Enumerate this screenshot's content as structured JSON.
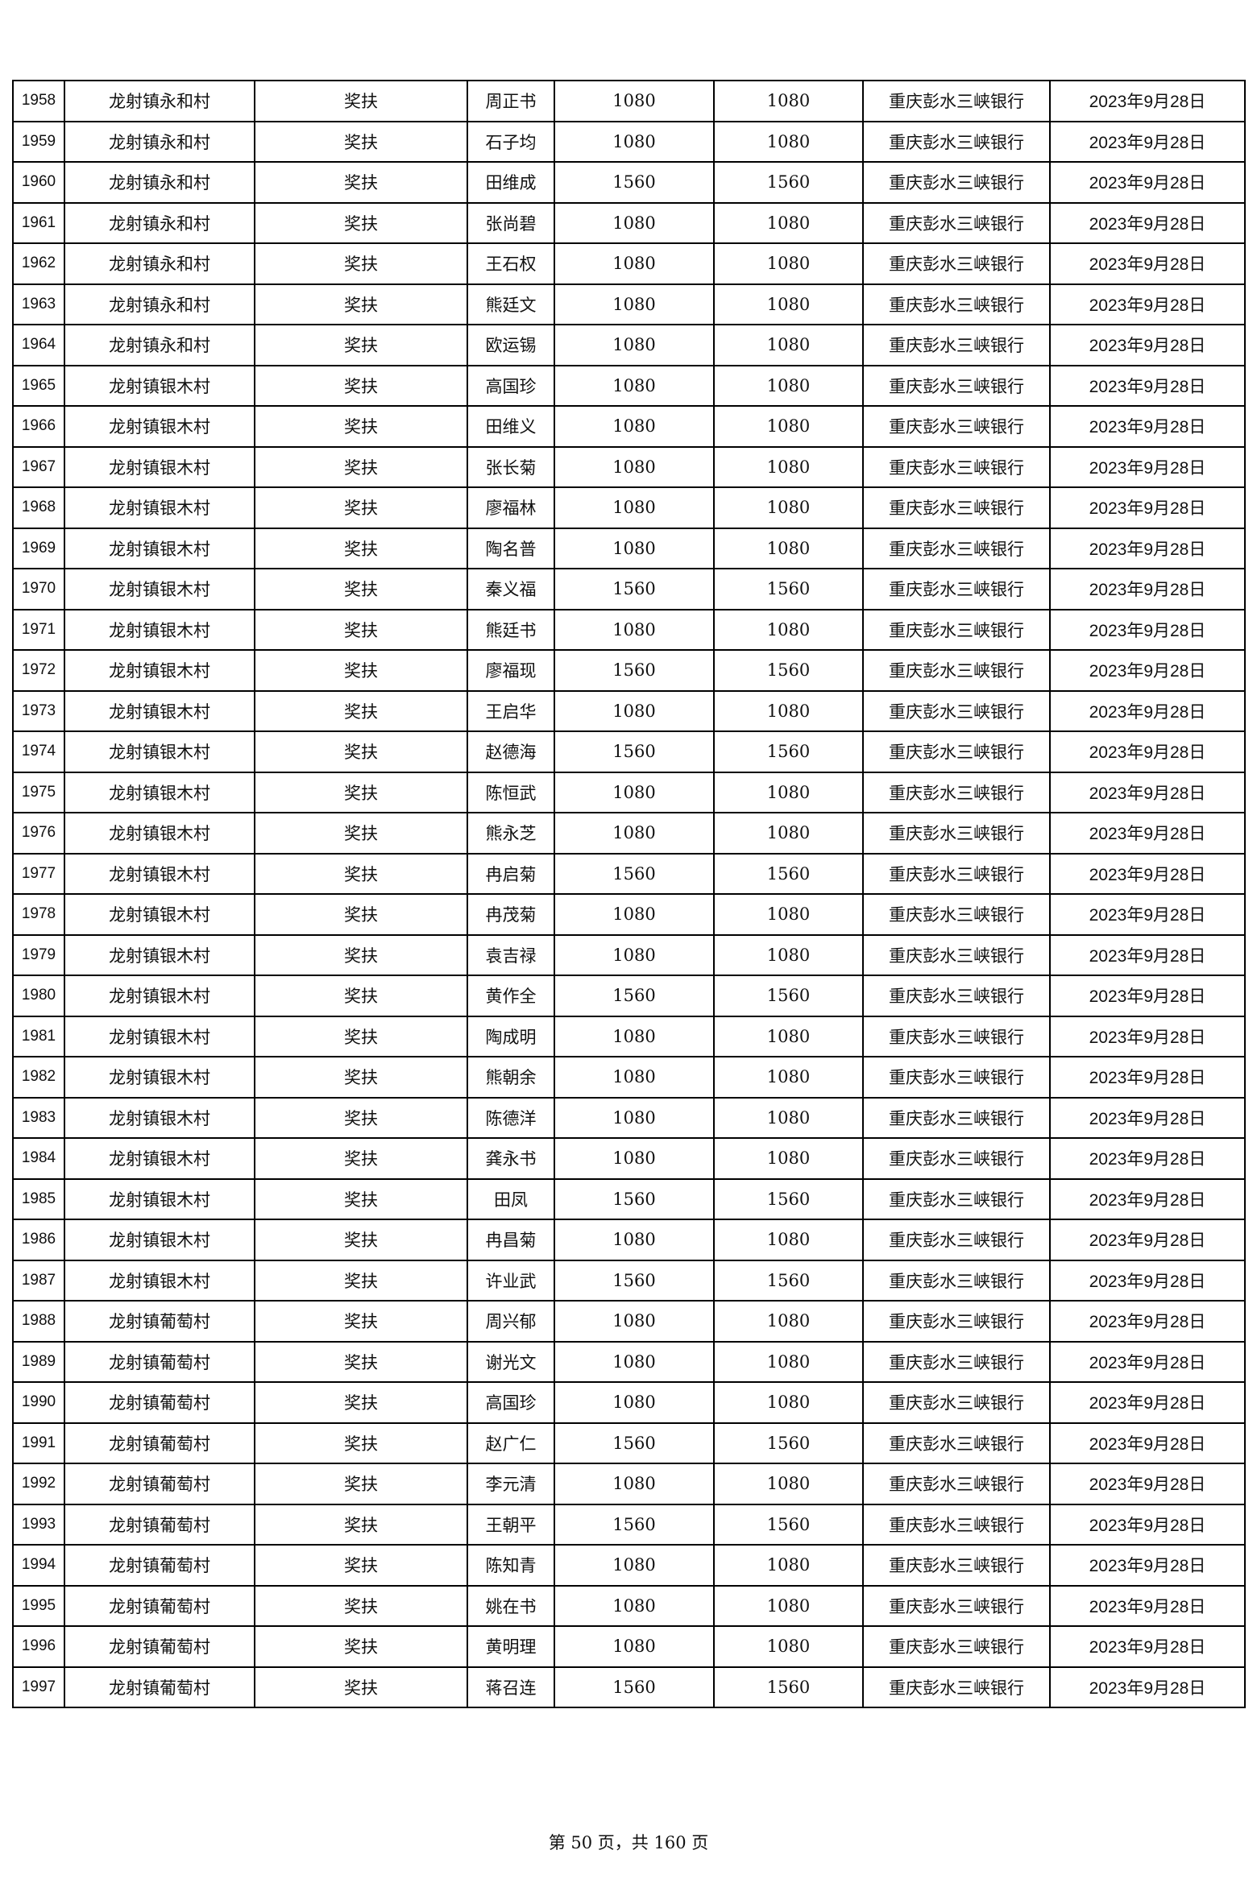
{
  "table": {
    "rows": [
      [
        "1958",
        "龙射镇永和村",
        "奖扶",
        "周正书",
        "1080",
        "1080",
        "重庆彭水三峡银行",
        "2023年9月28日"
      ],
      [
        "1959",
        "龙射镇永和村",
        "奖扶",
        "石子均",
        "1080",
        "1080",
        "重庆彭水三峡银行",
        "2023年9月28日"
      ],
      [
        "1960",
        "龙射镇永和村",
        "奖扶",
        "田维成",
        "1560",
        "1560",
        "重庆彭水三峡银行",
        "2023年9月28日"
      ],
      [
        "1961",
        "龙射镇永和村",
        "奖扶",
        "张尚碧",
        "1080",
        "1080",
        "重庆彭水三峡银行",
        "2023年9月28日"
      ],
      [
        "1962",
        "龙射镇永和村",
        "奖扶",
        "王石权",
        "1080",
        "1080",
        "重庆彭水三峡银行",
        "2023年9月28日"
      ],
      [
        "1963",
        "龙射镇永和村",
        "奖扶",
        "熊廷文",
        "1080",
        "1080",
        "重庆彭水三峡银行",
        "2023年9月28日"
      ],
      [
        "1964",
        "龙射镇永和村",
        "奖扶",
        "欧运锡",
        "1080",
        "1080",
        "重庆彭水三峡银行",
        "2023年9月28日"
      ],
      [
        "1965",
        "龙射镇银木村",
        "奖扶",
        "高国珍",
        "1080",
        "1080",
        "重庆彭水三峡银行",
        "2023年9月28日"
      ],
      [
        "1966",
        "龙射镇银木村",
        "奖扶",
        "田维义",
        "1080",
        "1080",
        "重庆彭水三峡银行",
        "2023年9月28日"
      ],
      [
        "1967",
        "龙射镇银木村",
        "奖扶",
        "张长菊",
        "1080",
        "1080",
        "重庆彭水三峡银行",
        "2023年9月28日"
      ],
      [
        "1968",
        "龙射镇银木村",
        "奖扶",
        "廖福林",
        "1080",
        "1080",
        "重庆彭水三峡银行",
        "2023年9月28日"
      ],
      [
        "1969",
        "龙射镇银木村",
        "奖扶",
        "陶名普",
        "1080",
        "1080",
        "重庆彭水三峡银行",
        "2023年9月28日"
      ],
      [
        "1970",
        "龙射镇银木村",
        "奖扶",
        "秦义福",
        "1560",
        "1560",
        "重庆彭水三峡银行",
        "2023年9月28日"
      ],
      [
        "1971",
        "龙射镇银木村",
        "奖扶",
        "熊廷书",
        "1080",
        "1080",
        "重庆彭水三峡银行",
        "2023年9月28日"
      ],
      [
        "1972",
        "龙射镇银木村",
        "奖扶",
        "廖福现",
        "1560",
        "1560",
        "重庆彭水三峡银行",
        "2023年9月28日"
      ],
      [
        "1973",
        "龙射镇银木村",
        "奖扶",
        "王启华",
        "1080",
        "1080",
        "重庆彭水三峡银行",
        "2023年9月28日"
      ],
      [
        "1974",
        "龙射镇银木村",
        "奖扶",
        "赵德海",
        "1560",
        "1560",
        "重庆彭水三峡银行",
        "2023年9月28日"
      ],
      [
        "1975",
        "龙射镇银木村",
        "奖扶",
        "陈恒武",
        "1080",
        "1080",
        "重庆彭水三峡银行",
        "2023年9月28日"
      ],
      [
        "1976",
        "龙射镇银木村",
        "奖扶",
        "熊永芝",
        "1080",
        "1080",
        "重庆彭水三峡银行",
        "2023年9月28日"
      ],
      [
        "1977",
        "龙射镇银木村",
        "奖扶",
        "冉启菊",
        "1560",
        "1560",
        "重庆彭水三峡银行",
        "2023年9月28日"
      ],
      [
        "1978",
        "龙射镇银木村",
        "奖扶",
        "冉茂菊",
        "1080",
        "1080",
        "重庆彭水三峡银行",
        "2023年9月28日"
      ],
      [
        "1979",
        "龙射镇银木村",
        "奖扶",
        "袁吉禄",
        "1080",
        "1080",
        "重庆彭水三峡银行",
        "2023年9月28日"
      ],
      [
        "1980",
        "龙射镇银木村",
        "奖扶",
        "黄作全",
        "1560",
        "1560",
        "重庆彭水三峡银行",
        "2023年9月28日"
      ],
      [
        "1981",
        "龙射镇银木村",
        "奖扶",
        "陶成明",
        "1080",
        "1080",
        "重庆彭水三峡银行",
        "2023年9月28日"
      ],
      [
        "1982",
        "龙射镇银木村",
        "奖扶",
        "熊朝余",
        "1080",
        "1080",
        "重庆彭水三峡银行",
        "2023年9月28日"
      ],
      [
        "1983",
        "龙射镇银木村",
        "奖扶",
        "陈德洋",
        "1080",
        "1080",
        "重庆彭水三峡银行",
        "2023年9月28日"
      ],
      [
        "1984",
        "龙射镇银木村",
        "奖扶",
        "龚永书",
        "1080",
        "1080",
        "重庆彭水三峡银行",
        "2023年9月28日"
      ],
      [
        "1985",
        "龙射镇银木村",
        "奖扶",
        "田凤",
        "1560",
        "1560",
        "重庆彭水三峡银行",
        "2023年9月28日"
      ],
      [
        "1986",
        "龙射镇银木村",
        "奖扶",
        "冉昌菊",
        "1080",
        "1080",
        "重庆彭水三峡银行",
        "2023年9月28日"
      ],
      [
        "1987",
        "龙射镇银木村",
        "奖扶",
        "许业武",
        "1560",
        "1560",
        "重庆彭水三峡银行",
        "2023年9月28日"
      ],
      [
        "1988",
        "龙射镇葡萄村",
        "奖扶",
        "周兴郁",
        "1080",
        "1080",
        "重庆彭水三峡银行",
        "2023年9月28日"
      ],
      [
        "1989",
        "龙射镇葡萄村",
        "奖扶",
        "谢光文",
        "1080",
        "1080",
        "重庆彭水三峡银行",
        "2023年9月28日"
      ],
      [
        "1990",
        "龙射镇葡萄村",
        "奖扶",
        "高国珍",
        "1080",
        "1080",
        "重庆彭水三峡银行",
        "2023年9月28日"
      ],
      [
        "1991",
        "龙射镇葡萄村",
        "奖扶",
        "赵广仁",
        "1560",
        "1560",
        "重庆彭水三峡银行",
        "2023年9月28日"
      ],
      [
        "1992",
        "龙射镇葡萄村",
        "奖扶",
        "李元清",
        "1080",
        "1080",
        "重庆彭水三峡银行",
        "2023年9月28日"
      ],
      [
        "1993",
        "龙射镇葡萄村",
        "奖扶",
        "王朝平",
        "1560",
        "1560",
        "重庆彭水三峡银行",
        "2023年9月28日"
      ],
      [
        "1994",
        "龙射镇葡萄村",
        "奖扶",
        "陈知青",
        "1080",
        "1080",
        "重庆彭水三峡银行",
        "2023年9月28日"
      ],
      [
        "1995",
        "龙射镇葡萄村",
        "奖扶",
        "姚在书",
        "1080",
        "1080",
        "重庆彭水三峡银行",
        "2023年9月28日"
      ],
      [
        "1996",
        "龙射镇葡萄村",
        "奖扶",
        "黄明理",
        "1080",
        "1080",
        "重庆彭水三峡银行",
        "2023年9月28日"
      ],
      [
        "1997",
        "龙射镇葡萄村",
        "奖扶",
        "蒋召连",
        "1560",
        "1560",
        "重庆彭水三峡银行",
        "2023年9月28日"
      ]
    ]
  },
  "footer": {
    "page_label": "第 50 页，共 160 页"
  }
}
